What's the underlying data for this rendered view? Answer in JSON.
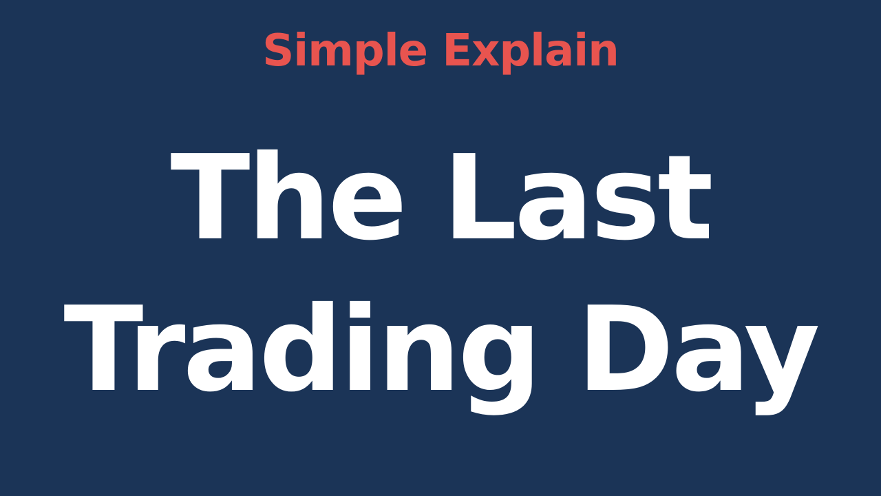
{
  "brand": "Simple Explain",
  "headline": {
    "line1": "The Last",
    "line2": "Trading Day"
  },
  "colors": {
    "background": "#1b3457",
    "brand": "#e8544f",
    "headline": "#ffffff"
  }
}
